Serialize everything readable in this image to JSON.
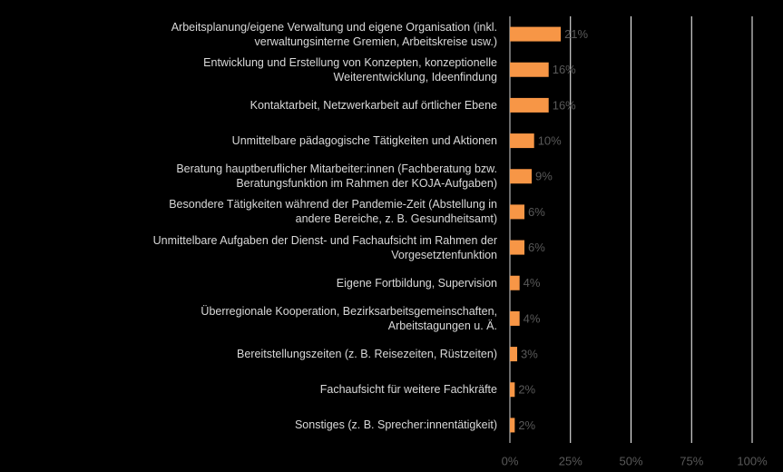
{
  "chart_data": {
    "type": "bar",
    "orientation": "horizontal",
    "categories": [
      "Arbeitsplanung/eigene Verwaltung und eigene Organisation (inkl. verwaltungsinterne Gremien, Arbeitskreise usw.)",
      "Entwicklung und Erstellung von Konzepten, konzeptionelle Weiterentwicklung, Ideenfindung",
      "Kontaktarbeit, Netzwerkarbeit auf örtlicher Ebene",
      "Unmittelbare pädagogische Tätigkeiten und Aktionen",
      "Beratung hauptberuflicher Mitarbeiter:innen (Fachberatung bzw. Beratungsfunktion im Rahmen der KOJA-Aufgaben)",
      "Besondere Tätigkeiten während der Pandemie-Zeit (Abstellung in andere Bereiche, z. B. Gesundheitsamt)",
      "Unmittelbare Aufgaben der Dienst- und Fachaufsicht im Rahmen der Vorgesetztenfunktion",
      "Eigene Fortbildung, Supervision",
      "Überregionale Kooperation, Bezirksarbeitsgemeinschaften, Arbeitstagungen u. Ä.",
      "Bereitstellungszeiten (z. B. Reisezeiten, Rüstzeiten)",
      "Fachaufsicht für weitere Fachkräfte",
      "Sonstiges (z. B. Sprecher:innentätigkeit)"
    ],
    "values": [
      21,
      16,
      16,
      10,
      9,
      6,
      6,
      4,
      4,
      3,
      2,
      2
    ],
    "value_labels": [
      "21%",
      "16%",
      "16%",
      "10%",
      "9%",
      "6%",
      "6%",
      "4%",
      "4%",
      "3%",
      "2%",
      "2%"
    ],
    "color": "#f79646",
    "xlim": [
      0,
      100
    ],
    "xticks": [
      {
        "value": 0,
        "label": "0%"
      },
      {
        "value": 25,
        "label": "25%"
      },
      {
        "value": 50,
        "label": "50%"
      },
      {
        "value": 75,
        "label": "75%"
      },
      {
        "value": 100,
        "label": "100%"
      }
    ],
    "grid": true
  }
}
